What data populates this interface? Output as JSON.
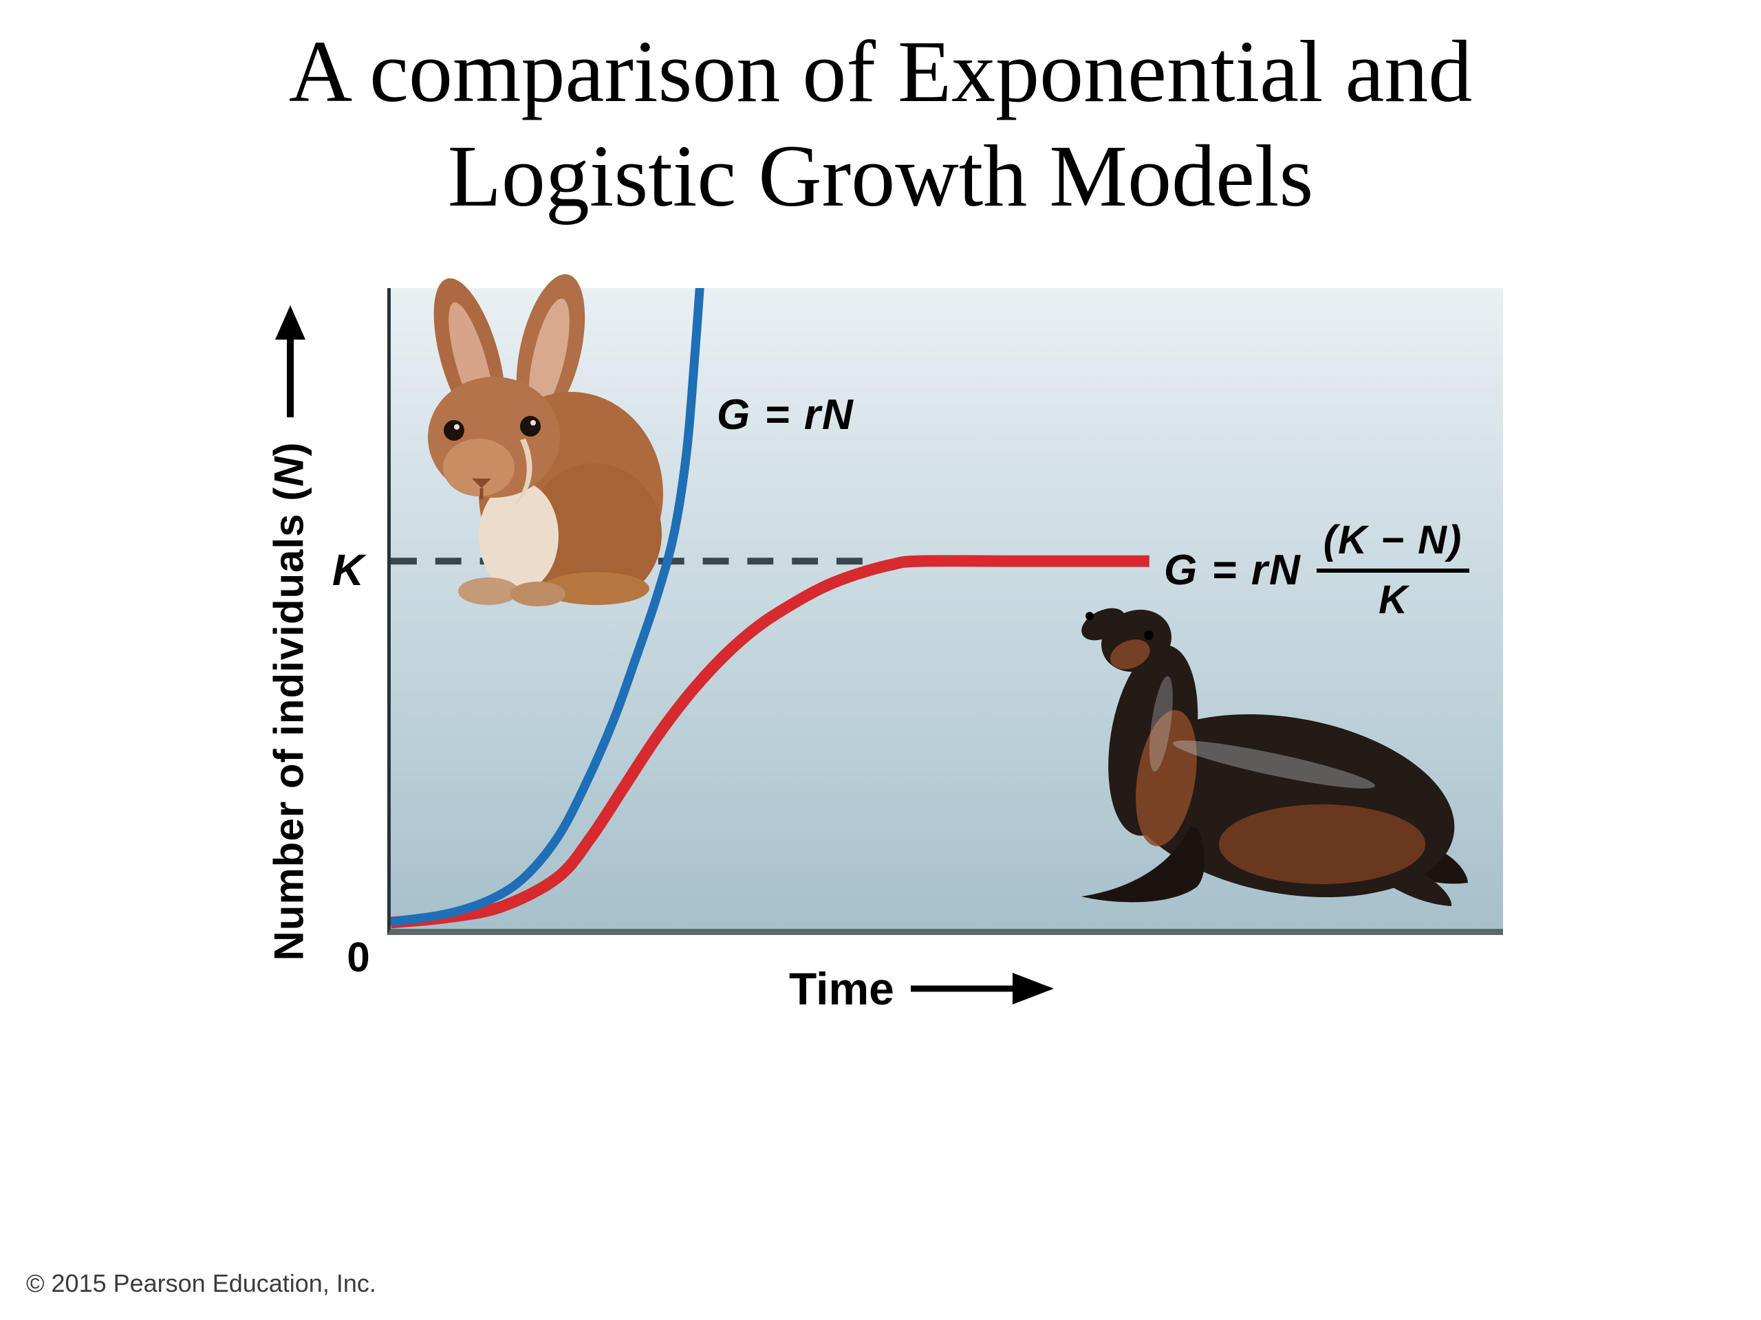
{
  "slide": {
    "title_line1": "A comparison of Exponential and",
    "title_line2": "Logistic Growth Models",
    "copyright": "© 2015 Pearson Education, Inc."
  },
  "labels": {
    "y_axis_pre": "Number of individuals (",
    "y_axis_var": "N",
    "y_axis_post": ")",
    "x_axis": "Time",
    "k_tick": "K",
    "zero_tick": "0",
    "exponential_equation": "G = rN",
    "logistic_equation_prefix": "G = rN",
    "logistic_equation_numerator": "(K − N)",
    "logistic_equation_denominator": "K"
  },
  "figures": {
    "rabbit": "rabbit",
    "sea_lion": "sea-lion"
  },
  "colors": {
    "exponential_curve": "#1e6fb5",
    "logistic_curve": "#d62a2e",
    "dashed_k_line": "#39454c",
    "y_axis": "#27333a",
    "x_axis": "#5d686d",
    "plot_bg_top": "#e9f0f3",
    "plot_bg_bottom": "#a7c0cb"
  },
  "chart_data": {
    "type": "line",
    "title": "A comparison of Exponential and Logistic Growth Models",
    "xlabel": "Time",
    "ylabel": "Number of individuals (N)",
    "xlim": [
      0,
      1
    ],
    "ylim": [
      0,
      1.78
    ],
    "grid": false,
    "legend_position": "inline-annotations",
    "y_ticks": [
      {
        "value": 0,
        "label": "0"
      },
      {
        "value": 1,
        "label": "K"
      }
    ],
    "k_reference_line": {
      "value": 1,
      "x_start": 0,
      "x_end": 0.435,
      "style": "dashed"
    },
    "series": [
      {
        "name": "Exponential growth",
        "label": "G = rN",
        "color": "#1e6fb5",
        "stroke_width": 13,
        "points": [
          [
            0,
            0.008
          ],
          [
            0.05,
            0.03
          ],
          [
            0.09,
            0.07
          ],
          [
            0.12,
            0.13
          ],
          [
            0.15,
            0.24
          ],
          [
            0.175,
            0.385
          ],
          [
            0.2,
            0.56
          ],
          [
            0.22,
            0.73
          ],
          [
            0.24,
            0.91
          ],
          [
            0.255,
            1.08
          ],
          [
            0.266,
            1.3
          ],
          [
            0.273,
            1.55
          ],
          [
            0.279,
            1.8
          ]
        ]
      },
      {
        "name": "Logistic growth",
        "label": "G = rN (K − N)/K",
        "color": "#d62a2e",
        "stroke_width": 17,
        "points": [
          [
            0,
            0.006
          ],
          [
            0.05,
            0.02
          ],
          [
            0.1,
            0.05
          ],
          [
            0.15,
            0.13
          ],
          [
            0.18,
            0.24
          ],
          [
            0.21,
            0.38
          ],
          [
            0.24,
            0.52
          ],
          [
            0.27,
            0.64
          ],
          [
            0.3,
            0.74
          ],
          [
            0.33,
            0.82
          ],
          [
            0.36,
            0.88
          ],
          [
            0.39,
            0.93
          ],
          [
            0.42,
            0.965
          ],
          [
            0.45,
            0.99
          ],
          [
            0.475,
            1.0
          ],
          [
            0.56,
            1.0
          ],
          [
            0.682,
            1.0
          ]
        ]
      }
    ]
  }
}
